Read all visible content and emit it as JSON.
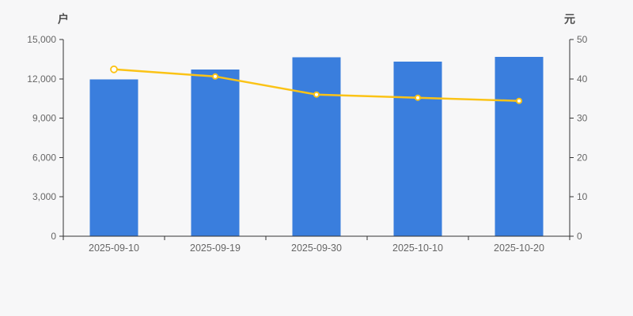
{
  "chart": {
    "background": "#f7f7f8",
    "axis_line_color": "#333333",
    "tick_text_color": "#666666",
    "axis_name_color": "#4d4d4d"
  },
  "chart_data": {
    "type": "bar",
    "title": "",
    "categories": [
      "2025-09-10",
      "2025-09-19",
      "2025-09-30",
      "2025-10-10",
      "2025-10-20"
    ],
    "series": [
      {
        "id": "bars",
        "type": "bar",
        "yaxis": "left",
        "values": [
          11950,
          12710,
          13630,
          13310,
          13670
        ],
        "color": "#3a7edd"
      },
      {
        "id": "line",
        "type": "line",
        "yaxis": "right",
        "values": [
          42.4,
          40.6,
          36.0,
          35.2,
          34.4
        ],
        "color": "#fbc316",
        "marker": "white-filled-circle, first point larger hollow ring"
      }
    ],
    "left_axis": {
      "label": "户",
      "range": [
        0,
        15000
      ],
      "ticks": [
        0,
        3000,
        6000,
        9000,
        12000,
        15000
      ],
      "tick_labels": [
        "0",
        "3,000",
        "6,000",
        "9,000",
        "12,000",
        "15,000"
      ]
    },
    "right_axis": {
      "label": "元",
      "range": [
        0,
        50
      ],
      "ticks": [
        0,
        10,
        20,
        30,
        40,
        50
      ],
      "tick_labels": [
        "0",
        "10",
        "20",
        "30",
        "40",
        "50"
      ]
    },
    "grid": false,
    "legend": "none"
  }
}
